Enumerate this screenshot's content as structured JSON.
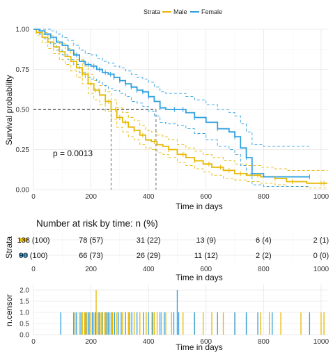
{
  "chart_data": [
    {
      "type": "line",
      "subtype": "kaplan-meier",
      "legend": {
        "title": "Strata",
        "position": "top",
        "entries": [
          "Male",
          "Female"
        ]
      },
      "colors": {
        "Male": "#E7B800",
        "Female": "#2E9FDF"
      },
      "xlabel": "Time in days",
      "ylabel": "Survival probability",
      "xlim": [
        0,
        1022
      ],
      "ylim": [
        0,
        1
      ],
      "xticks": [
        "0",
        "200",
        "400",
        "600",
        "800",
        "1000"
      ],
      "yticks": [
        "0.00",
        "0.25",
        "0.50",
        "0.75",
        "1.00"
      ],
      "pvalue": "p = 0.0013",
      "median": {
        "y": 0.5,
        "Male": 270,
        "Female": 426
      },
      "grid": true,
      "series": [
        {
          "name": "Male",
          "color": "#E7B800",
          "x": [
            0,
            10,
            30,
            50,
            70,
            90,
            110,
            130,
            150,
            170,
            190,
            210,
            230,
            250,
            270,
            290,
            310,
            330,
            350,
            370,
            390,
            410,
            430,
            450,
            470,
            500,
            530,
            560,
            590,
            620,
            660,
            700,
            740,
            790,
            840,
            880,
            950,
            1022
          ],
          "y": [
            1.0,
            0.98,
            0.95,
            0.92,
            0.89,
            0.86,
            0.83,
            0.8,
            0.76,
            0.72,
            0.66,
            0.62,
            0.59,
            0.55,
            0.5,
            0.45,
            0.42,
            0.39,
            0.37,
            0.34,
            0.31,
            0.3,
            0.28,
            0.27,
            0.25,
            0.22,
            0.2,
            0.18,
            0.16,
            0.14,
            0.12,
            0.1,
            0.09,
            0.08,
            0.07,
            0.05,
            0.04,
            0.04
          ],
          "upper": [
            1.0,
            1.0,
            0.98,
            0.96,
            0.93,
            0.91,
            0.88,
            0.85,
            0.81,
            0.77,
            0.72,
            0.68,
            0.65,
            0.61,
            0.56,
            0.51,
            0.48,
            0.45,
            0.43,
            0.4,
            0.37,
            0.36,
            0.34,
            0.33,
            0.31,
            0.28,
            0.26,
            0.24,
            0.22,
            0.2,
            0.18,
            0.16,
            0.15,
            0.14,
            0.13,
            0.12,
            0.12,
            0.12
          ],
          "lower": [
            1.0,
            0.96,
            0.92,
            0.88,
            0.85,
            0.81,
            0.78,
            0.74,
            0.7,
            0.66,
            0.6,
            0.56,
            0.53,
            0.49,
            0.44,
            0.39,
            0.36,
            0.33,
            0.31,
            0.28,
            0.26,
            0.25,
            0.23,
            0.22,
            0.2,
            0.17,
            0.15,
            0.13,
            0.11,
            0.09,
            0.07,
            0.06,
            0.05,
            0.04,
            0.03,
            0.02,
            0.01,
            0.01
          ]
        },
        {
          "name": "Female",
          "color": "#2E9FDF",
          "x": [
            0,
            20,
            40,
            60,
            80,
            100,
            120,
            140,
            160,
            180,
            200,
            220,
            240,
            260,
            280,
            300,
            320,
            340,
            360,
            380,
            400,
            420,
            440,
            460,
            480,
            500,
            530,
            560,
            600,
            640,
            680,
            700,
            720,
            740,
            760,
            800,
            860,
            960
          ],
          "y": [
            1.0,
            0.99,
            0.97,
            0.95,
            0.92,
            0.9,
            0.87,
            0.84,
            0.8,
            0.78,
            0.77,
            0.75,
            0.73,
            0.72,
            0.7,
            0.68,
            0.66,
            0.64,
            0.62,
            0.61,
            0.58,
            0.55,
            0.51,
            0.5,
            0.5,
            0.5,
            0.48,
            0.45,
            0.42,
            0.38,
            0.36,
            0.33,
            0.26,
            0.2,
            0.1,
            0.08,
            0.08,
            0.08
          ],
          "upper": [
            1.0,
            1.0,
            1.0,
            0.99,
            0.97,
            0.95,
            0.93,
            0.9,
            0.87,
            0.85,
            0.84,
            0.82,
            0.8,
            0.79,
            0.77,
            0.76,
            0.74,
            0.72,
            0.7,
            0.69,
            0.67,
            0.64,
            0.61,
            0.6,
            0.6,
            0.6,
            0.58,
            0.56,
            0.53,
            0.5,
            0.48,
            0.46,
            0.41,
            0.36,
            0.28,
            0.27,
            0.27,
            0.27
          ],
          "lower": [
            1.0,
            0.97,
            0.94,
            0.91,
            0.87,
            0.84,
            0.81,
            0.78,
            0.73,
            0.7,
            0.69,
            0.67,
            0.65,
            0.63,
            0.62,
            0.6,
            0.58,
            0.55,
            0.54,
            0.52,
            0.49,
            0.46,
            0.42,
            0.41,
            0.41,
            0.4,
            0.38,
            0.35,
            0.31,
            0.27,
            0.25,
            0.22,
            0.15,
            0.1,
            0.03,
            0.02,
            0.02,
            0.02
          ]
        }
      ],
      "censor_marks": {
        "Male": [
          170,
          180,
          200,
          215,
          228,
          250,
          262,
          285,
          300,
          320,
          350,
          380,
          420,
          470,
          520,
          560,
          610,
          650,
          680,
          720,
          780,
          840,
          900,
          1000,
          1010
        ],
        "Female": [
          150,
          175,
          190,
          210,
          230,
          250,
          268,
          280,
          300,
          320,
          340,
          360,
          380,
          400,
          440,
          490,
          520,
          560,
          640,
          700,
          740,
          760,
          960
        ]
      }
    },
    {
      "type": "table",
      "title": "Number at risk by time: n (%)",
      "ylabel": "Strata",
      "xlabel": "Time in days",
      "xticks": [
        "0",
        "200",
        "400",
        "600",
        "800",
        "1000"
      ],
      "rows": [
        {
          "name": "Male",
          "color": "#E7B800",
          "values": [
            "138 (100)",
            "78 (57)",
            "31 (22)",
            "13 (9)",
            "6 (4)",
            "2 (1)"
          ]
        },
        {
          "name": "Female",
          "color": "#2E9FDF",
          "values": [
            "90 (100)",
            "66 (73)",
            "26 (29)",
            "11 (12)",
            "2 (2)",
            "0 (0)"
          ]
        }
      ]
    },
    {
      "type": "bar",
      "ylabel": "n.censor",
      "xlabel": "Time in days",
      "xticks": [
        "0",
        "200",
        "400",
        "600",
        "800",
        "1000"
      ],
      "yticks": [
        "0.0",
        "0.5",
        "1.0",
        "1.5",
        "2.0"
      ],
      "ylim": [
        0,
        2
      ],
      "series": [
        {
          "name": "Male",
          "color": "#E7B800",
          "x": [
            145,
            160,
            170,
            178,
            186,
            195,
            200,
            210,
            218,
            224,
            232,
            240,
            248,
            256,
            265,
            275,
            290,
            310,
            330,
            350,
            370,
            392,
            412,
            420,
            430,
            445,
            460,
            480,
            520,
            560,
            590,
            620,
            660,
            700,
            740,
            790,
            820,
            860,
            930,
            1000,
            1010
          ],
          "values": [
            1,
            1,
            1,
            1,
            1,
            1,
            1,
            1,
            2,
            1,
            1,
            1,
            1,
            1,
            1,
            1,
            1,
            1,
            1,
            1,
            1,
            1,
            1,
            1,
            1,
            1,
            1,
            1,
            1,
            1,
            1,
            1,
            1,
            1,
            1,
            1,
            1,
            1,
            1,
            1,
            1
          ]
        },
        {
          "name": "Female",
          "color": "#2E9FDF",
          "x": [
            95,
            140,
            150,
            165,
            182,
            192,
            205,
            215,
            228,
            238,
            252,
            260,
            270,
            282,
            295,
            305,
            320,
            335,
            342,
            360,
            382,
            400,
            415,
            440,
            455,
            488,
            500,
            505,
            560,
            640,
            700,
            740,
            780,
            830,
            960
          ],
          "values": [
            1,
            1,
            1,
            1,
            1,
            1,
            1,
            1,
            1,
            1,
            1,
            1,
            1,
            1,
            1,
            1,
            1,
            1,
            1,
            1,
            1,
            1,
            1,
            1,
            1,
            1,
            2,
            1,
            1,
            1,
            1,
            1,
            1,
            1,
            1
          ]
        }
      ]
    }
  ]
}
